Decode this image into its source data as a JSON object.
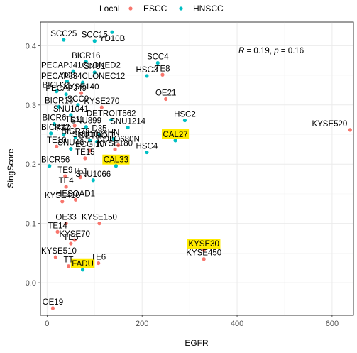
{
  "chart_data": {
    "type": "scatter",
    "xlabel": "EGFR",
    "ylabel": "SingScore",
    "xlim": [
      -14,
      645
    ],
    "ylim": [
      -0.055,
      0.44
    ],
    "x_ticks": [
      0,
      200,
      400,
      600
    ],
    "y_ticks": [
      0.0,
      0.1,
      0.2,
      0.3,
      0.4
    ],
    "y_tick_labels": [
      "0.0",
      "0.1",
      "0.2",
      "0.3",
      "0.4"
    ],
    "grid": true,
    "legend": {
      "title": "Local",
      "position": "top",
      "entries": [
        {
          "name": "ESCC",
          "color": "#F8766D"
        },
        {
          "name": "HNSCC",
          "color": "#00BFC4"
        }
      ]
    },
    "annotation": {
      "r_symbol": "R",
      "r_value": "0.19",
      "p_symbol": "p",
      "p_value": "0.16"
    },
    "points": [
      {
        "label": "SCC25",
        "x": 35,
        "y": 0.41,
        "group": "HNSCC"
      },
      {
        "label": "YD10B",
        "x": 137,
        "y": 0.423,
        "group": "HNSCC"
      },
      {
        "label": "SCC15",
        "x": 100,
        "y": 0.408,
        "group": "HNSCC"
      },
      {
        "label": "BICR16",
        "x": 82,
        "y": 0.373,
        "group": "HNSCC"
      },
      {
        "label": "SCC4",
        "x": 233,
        "y": 0.371,
        "group": "HNSCC"
      },
      {
        "label": "PECAPJ41CLONED2",
        "x": 55,
        "y": 0.357,
        "group": "HNSCC"
      },
      {
        "label": "SNU1",
        "x": 100,
        "y": 0.355,
        "group": "HNSCC"
      },
      {
        "label": "HSC3",
        "x": 210,
        "y": 0.349,
        "group": "HNSCC"
      },
      {
        "label": "TE8",
        "x": 243,
        "y": 0.351,
        "group": "ESCC"
      },
      {
        "label": "YD8",
        "x": 42,
        "y": 0.34,
        "group": "HNSCC"
      },
      {
        "label": "PECAPJ34CLONEC12",
        "x": 75,
        "y": 0.338,
        "group": "HNSCC"
      },
      {
        "label": "BICR31",
        "x": 20,
        "y": 0.323,
        "group": "HNSCC"
      },
      {
        "label": "KYSE140",
        "x": 72,
        "y": 0.32,
        "group": "ESCC"
      },
      {
        "label": "PECAPJ49",
        "x": 40,
        "y": 0.318,
        "group": "HNSCC"
      },
      {
        "label": "OE21",
        "x": 250,
        "y": 0.31,
        "group": "ESCC"
      },
      {
        "label": "BICR18",
        "x": 25,
        "y": 0.297,
        "group": "HNSCC"
      },
      {
        "label": "SCC9",
        "x": 65,
        "y": 0.3,
        "group": "HNSCC"
      },
      {
        "label": "KYSE270",
        "x": 115,
        "y": 0.296,
        "group": "ESCC"
      },
      {
        "label": "HSC2",
        "x": 290,
        "y": 0.274,
        "group": "HNSCC"
      },
      {
        "label": "SNU1041",
        "x": 50,
        "y": 0.283,
        "group": "HNSCC"
      },
      {
        "label": "DETROIT562",
        "x": 135,
        "y": 0.275,
        "group": "HNSCC"
      },
      {
        "label": "KYSE520",
        "x": 638,
        "y": 0.258,
        "group": "ESCC"
      },
      {
        "label": "BICR6",
        "x": 15,
        "y": 0.268,
        "group": "HNSCC"
      },
      {
        "label": "TE11",
        "x": 58,
        "y": 0.265,
        "group": "ESCC"
      },
      {
        "label": "SNU899",
        "x": 82,
        "y": 0.263,
        "group": "HNSCC"
      },
      {
        "label": "SNU1214",
        "x": 170,
        "y": 0.262,
        "group": "HNSCC"
      },
      {
        "label": "BICR22",
        "x": 8,
        "y": 0.252,
        "group": "HNSCC"
      },
      {
        "label": "FE2",
        "x": 35,
        "y": 0.25,
        "group": "HNSCC"
      },
      {
        "label": "BICR78",
        "x": 60,
        "y": 0.245,
        "group": "HNSCC"
      },
      {
        "label": "D35",
        "x": 110,
        "y": 0.25,
        "group": "HNSCC"
      },
      {
        "label": "CAL27",
        "x": 270,
        "y": 0.24,
        "group": "HNSCC"
      },
      {
        "label": "SNU1076",
        "x": 90,
        "y": 0.24,
        "group": "HNSCC"
      },
      {
        "label": "DETROIT",
        "x": 105,
        "y": 0.238,
        "group": "HNSCC"
      },
      {
        "label": "HN",
        "x": 140,
        "y": 0.243,
        "group": "HNSCC"
      },
      {
        "label": "COLO680N",
        "x": 150,
        "y": 0.232,
        "group": "ESCC"
      },
      {
        "label": "TE10",
        "x": 20,
        "y": 0.23,
        "group": "ESCC"
      },
      {
        "label": "SNU46",
        "x": 50,
        "y": 0.226,
        "group": "HNSCC"
      },
      {
        "label": "ECGI10",
        "x": 90,
        "y": 0.223,
        "group": "ESCC"
      },
      {
        "label": "KYSE180",
        "x": 143,
        "y": 0.225,
        "group": "ESCC"
      },
      {
        "label": "HSC4",
        "x": 210,
        "y": 0.22,
        "group": "HNSCC"
      },
      {
        "label": "TE15",
        "x": 80,
        "y": 0.21,
        "group": "ESCC"
      },
      {
        "label": "CAL33",
        "x": 145,
        "y": 0.197,
        "group": "HNSCC"
      },
      {
        "label": "BICR56",
        "x": 5,
        "y": 0.197,
        "group": "HNSCC"
      },
      {
        "label": "TE9",
        "x": 38,
        "y": 0.18,
        "group": "ESCC"
      },
      {
        "label": "TE1",
        "x": 70,
        "y": 0.178,
        "group": "ESCC"
      },
      {
        "label": "SNU1066",
        "x": 97,
        "y": 0.173,
        "group": "HNSCC"
      },
      {
        "label": "TE4",
        "x": 40,
        "y": 0.162,
        "group": "ESCC"
      },
      {
        "label": "KYSE410",
        "x": 32,
        "y": 0.137,
        "group": "ESCC"
      },
      {
        "label": "HESOAD1",
        "x": 60,
        "y": 0.14,
        "group": "ESCC"
      },
      {
        "label": "OE33",
        "x": 40,
        "y": 0.1,
        "group": "ESCC"
      },
      {
        "label": "KYSE150",
        "x": 110,
        "y": 0.1,
        "group": "ESCC"
      },
      {
        "label": "TE14",
        "x": 22,
        "y": 0.086,
        "group": "ESCC"
      },
      {
        "label": "KYSE70",
        "x": 58,
        "y": 0.072,
        "group": "ESCC"
      },
      {
        "label": "TE5",
        "x": 50,
        "y": 0.066,
        "group": "ESCC"
      },
      {
        "label": "KYSE30",
        "x": 330,
        "y": 0.055,
        "group": "ESCC"
      },
      {
        "label": "KYSE510",
        "x": 18,
        "y": 0.043,
        "group": "ESCC"
      },
      {
        "label": "KYSE450",
        "x": 330,
        "y": 0.04,
        "group": "ESCC"
      },
      {
        "label": "TE6",
        "x": 108,
        "y": 0.033,
        "group": "ESCC"
      },
      {
        "label": "TT",
        "x": 45,
        "y": 0.028,
        "group": "ESCC"
      },
      {
        "label": "FADU",
        "x": 75,
        "y": 0.022,
        "group": "HNSCC"
      },
      {
        "label": "OE19",
        "x": 12,
        "y": -0.043,
        "group": "ESCC"
      }
    ],
    "highlighted_labels": [
      "CAL27",
      "CAL33",
      "KYSE30",
      "FADU"
    ],
    "highlight_color": "#FFEB00"
  }
}
